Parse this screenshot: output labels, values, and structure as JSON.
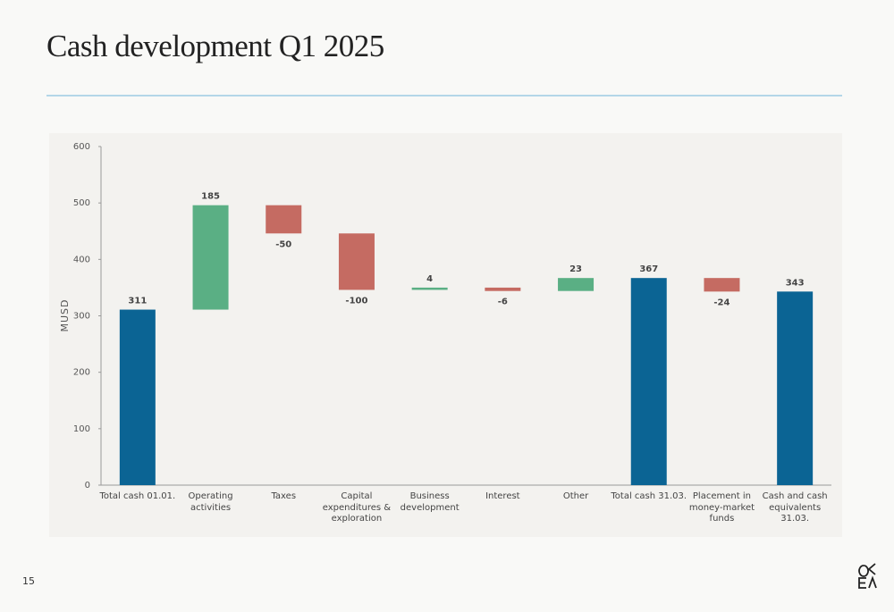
{
  "title": "Cash development Q1 2025",
  "page_number": "15",
  "chart_data": {
    "type": "waterfall",
    "y_label": "MUSD",
    "categories": [
      "Total cash 01.01.",
      "Operating activities",
      "Taxes",
      "Capital expenditures & exploration",
      "Business development",
      "Interest",
      "Other",
      "Total cash 31.03.",
      "Placement in money-market funds",
      "Cash and cash equivalents 31.03."
    ],
    "values": [
      311,
      185,
      -50,
      -100,
      4,
      -6,
      23,
      367,
      -24,
      343
    ],
    "total": [
      true,
      false,
      false,
      false,
      false,
      false,
      false,
      true,
      false,
      true
    ],
    "colors": {
      "total": "#0b6494",
      "increase": "#5aaf84",
      "decrease": "#c56b62"
    },
    "ylim": [
      0,
      600
    ],
    "yticks": [
      0,
      100,
      200,
      300,
      400,
      500,
      600
    ]
  }
}
